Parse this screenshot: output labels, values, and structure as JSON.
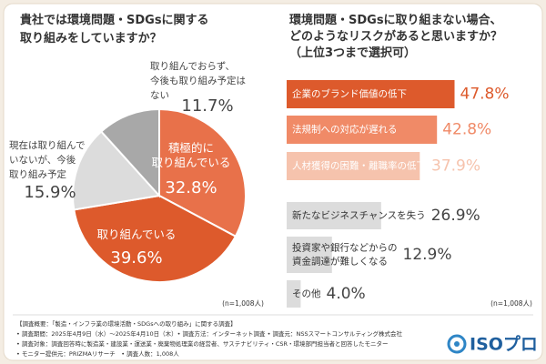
{
  "chart_data": [
    {
      "type": "pie",
      "title": "貴社では環境問題・SDGsに関する\n取り組みをしていますか？",
      "note": "(n=1,008人)",
      "categories": [
        "積極的に\n取り組んでいる",
        "取り組んでいる",
        "現在は取り組んで\nいないが、今後\n取り組み予定",
        "取り組んでおらず、\n今後も取り組み予定は\nない"
      ],
      "values": [
        32.8,
        39.6,
        15.9,
        11.7
      ],
      "value_labels": [
        "32.8%",
        "39.6%",
        "15.9%",
        "11.7%"
      ],
      "colors": [
        "#e8714a",
        "#dd5a2c",
        "#dcdcdc",
        "#a8a8a8"
      ]
    },
    {
      "type": "hbar",
      "title": "環境問題・SDGsに取り組まない場合、\nどのようなリスクがあると思いますか？\n（上位3つまで選択可）",
      "note": "(n=1,008人)",
      "categories": [
        "企業のブランド価値の低下",
        "法規制への対応が遅れる",
        "人材獲得の困難・離職率の低下",
        "新たなビジネスチャンスを失う",
        "投資家や銀行などからの\n資金調達が難しくなる",
        "その他"
      ],
      "values": [
        47.8,
        42.8,
        37.9,
        26.9,
        12.9,
        4.0
      ],
      "value_labels": [
        "47.8%",
        "42.8%",
        "37.9%",
        "26.9%",
        "12.9%",
        "4.0%"
      ],
      "colors": [
        "#dd5a2c",
        "#f08a67",
        "#f6c3ad",
        "#dcdcdc",
        "#dcdcdc",
        "#dcdcdc"
      ],
      "xlim": [
        0,
        50
      ]
    }
  ],
  "notes": [
    "【調査概要：「製造・インフラ業の環境活動・SDGsへの取り組み」に関する調査】",
    "• 調査期間：2025年4月9日（水）〜2025年4月10日（木）• 調査方法：インターネット調査 • 調査元：NSSスマートコンサルティング株式会社",
    "• 調査対象：調査回答時に製造業・建設業・運送業・廃棄物処理業の経営者、サステナビリティ・CSR・環境部門担当者と回答したモニター",
    "• モニター提供元：PRIZMAリサーチ　• 調査人数：1,008人"
  ],
  "logo": "ISOプロ"
}
